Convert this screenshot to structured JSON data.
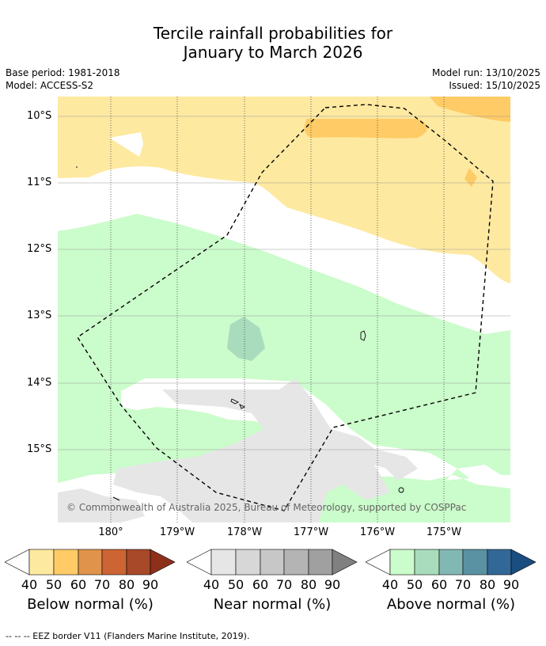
{
  "title_line1": "Tercile rainfall probabilities for",
  "title_line2": "January to March 2026",
  "base_period": "Base period: 1981-2018",
  "model": "Model: ACCESS-S2",
  "model_run": "Model run: 13/10/2025",
  "issued": "Issued: 15/10/2025",
  "lat_labels": [
    "10°S",
    "11°S",
    "12°S",
    "13°S",
    "14°S",
    "15°S"
  ],
  "lon_labels": [
    "180°",
    "179°W",
    "178°W",
    "177°W",
    "176°W",
    "175°W"
  ],
  "copyright": "© Commonwealth of Australia 2025, Bureau of Meteorology, supported by COSPPac",
  "legends": {
    "below": {
      "caption": "Below normal (%)",
      "ticks": [
        "40",
        "50",
        "60",
        "70",
        "80",
        "90"
      ],
      "colors": [
        "#fee9a0",
        "#fecb66",
        "#e0934a",
        "#cc6533",
        "#a8492a",
        "#8e2f1a"
      ]
    },
    "near": {
      "caption": "Near normal (%)",
      "ticks": [
        "40",
        "50",
        "60",
        "70",
        "80",
        "90"
      ],
      "colors": [
        "#e6e6e6",
        "#d7d7d7",
        "#c7c7c7",
        "#b4b4b4",
        "#a0a0a0",
        "#808080"
      ]
    },
    "above": {
      "caption": "Above normal (%)",
      "ticks": [
        "40",
        "50",
        "60",
        "70",
        "80",
        "90"
      ],
      "colors": [
        "#cbfccb",
        "#a8dcbc",
        "#82b8b4",
        "#5a92a4",
        "#326898",
        "#1a4d80"
      ]
    }
  },
  "footer": "--  --  -- EEZ border V11 (Flanders Marine Institute, 2019)."
}
